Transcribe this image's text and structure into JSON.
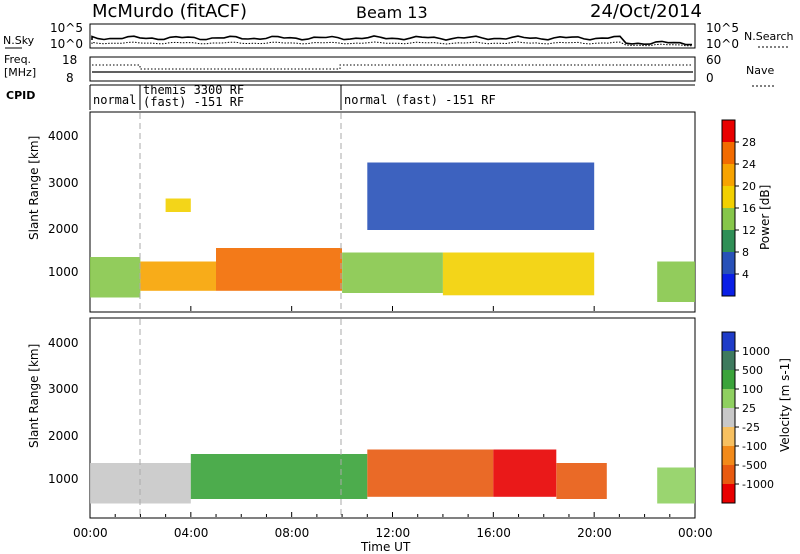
{
  "header": {
    "station": "McMurdo (fitACF)",
    "beam": "Beam 13",
    "date": "24/Oct/2014"
  },
  "sky_panel": {
    "left_label": "N.Sky",
    "right_label": "N.Search",
    "top_tick": "10^5",
    "bottom_tick": "10^0",
    "right_top_tick": "10^5",
    "right_bottom_tick": "10^0"
  },
  "freq_panel": {
    "left_label_1": "Freq.",
    "left_label_2": "[MHz]",
    "left_top_tick": "18",
    "left_bottom_tick": "8",
    "right_label": "Nave",
    "right_top_tick": "60",
    "right_bottom_tick": "0"
  },
  "cpid_panel": {
    "label": "CPID",
    "segments": [
      {
        "line1": "normal",
        "line2": ""
      },
      {
        "line1": "themis 3300 RF",
        "line2": "(fast) -151 RF"
      },
      {
        "line1": "normal (fast) -151 RF",
        "line2": ""
      }
    ]
  },
  "power_colorbar": {
    "label": "Power [dB]",
    "ticks": [
      "28",
      "24",
      "20",
      "16",
      "12",
      "8",
      "4"
    ],
    "colors": [
      "#e80000",
      "#f26b00",
      "#f7a300",
      "#f2d000",
      "#86c64a",
      "#2f8f56",
      "#2851b8",
      "#0a1fe6"
    ]
  },
  "velocity_colorbar": {
    "label": "Velocity [m s-1]",
    "ticks": [
      "1000",
      "500",
      "100",
      "25",
      "-25",
      "-100",
      "-500",
      "-1000"
    ],
    "colors": [
      "#1f3cc8",
      "#3e7a5e",
      "#3aa33a",
      "#8fd060",
      "#c8c8c8",
      "#f7c060",
      "#f28a1a",
      "#e85a10",
      "#e80000"
    ]
  },
  "axis": {
    "y_label": "Slant Range [km]",
    "y_ticks": [
      "4000",
      "3000",
      "2000",
      "1000"
    ],
    "x_label": "Time UT",
    "x_ticks": [
      "00:00",
      "04:00",
      "08:00",
      "12:00",
      "16:00",
      "20:00",
      "00:00"
    ]
  },
  "chart_data": {
    "type": "heatmap",
    "title": "McMurdo (fitACF) Beam 13 24/Oct/2014",
    "xlabel": "Time UT",
    "ylabel": "Slant Range [km]",
    "xlim": [
      "00:00",
      "24:00"
    ],
    "ylim": [
      200,
      4600
    ],
    "cpid_changes_hours": [
      2.0,
      10.0
    ],
    "series": [
      {
        "name": "Power [dB]",
        "scale": [
          4,
          8,
          12,
          16,
          20,
          24,
          28
        ],
        "regions": [
          {
            "t0": 0.0,
            "t1": 2.0,
            "r0": 500,
            "r1": 1400,
            "level": 16
          },
          {
            "t0": 2.0,
            "t1": 5.0,
            "r0": 650,
            "r1": 1300,
            "level": 24
          },
          {
            "t0": 5.0,
            "t1": 10.0,
            "r0": 650,
            "r1": 1600,
            "level": 28
          },
          {
            "t0": 10.0,
            "t1": 14.0,
            "r0": 600,
            "r1": 1500,
            "level": 16
          },
          {
            "t0": 14.0,
            "t1": 20.0,
            "r0": 550,
            "r1": 1500,
            "level": 20
          },
          {
            "t0": 3.0,
            "t1": 4.0,
            "r0": 2400,
            "r1": 2700,
            "level": 20
          },
          {
            "t0": 11.0,
            "t1": 20.0,
            "r0": 2000,
            "r1": 3500,
            "level": 8
          },
          {
            "t0": 22.5,
            "t1": 24.0,
            "r0": 400,
            "r1": 1300,
            "level": 16
          }
        ]
      },
      {
        "name": "Velocity [m s-1]",
        "scale": [
          -1000,
          -500,
          -100,
          -25,
          25,
          100,
          500,
          1000
        ],
        "regions": [
          {
            "t0": 0.0,
            "t1": 2.0,
            "r0": 500,
            "r1": 1400,
            "level": 25
          },
          {
            "t0": 2.0,
            "t1": 4.0,
            "r0": 500,
            "r1": 1400,
            "level": 0
          },
          {
            "t0": 4.0,
            "t1": 11.0,
            "r0": 600,
            "r1": 1600,
            "level": 500
          },
          {
            "t0": 11.0,
            "t1": 16.0,
            "r0": 650,
            "r1": 1700,
            "level": -500
          },
          {
            "t0": 16.0,
            "t1": 18.5,
            "r0": 650,
            "r1": 1700,
            "level": -1000
          },
          {
            "t0": 18.5,
            "t1": 20.5,
            "r0": 600,
            "r1": 1400,
            "level": -500
          },
          {
            "t0": 22.5,
            "t1": 24.0,
            "r0": 500,
            "r1": 1300,
            "level": 100
          }
        ]
      }
    ]
  }
}
